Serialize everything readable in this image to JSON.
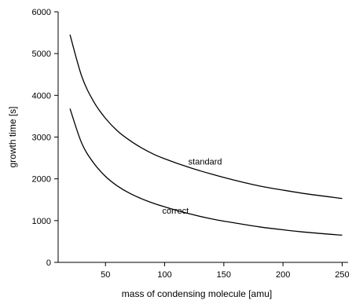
{
  "chart_data": {
    "type": "line",
    "xlabel": "mass of condensing molecule [amu]",
    "ylabel": "growth time [s]",
    "xlim": [
      10,
      255
    ],
    "ylim": [
      0,
      6000
    ],
    "xticks": [
      50,
      100,
      150,
      200,
      250
    ],
    "yticks": [
      0,
      1000,
      2000,
      3000,
      4000,
      5000,
      6000
    ],
    "grid": false,
    "series": [
      {
        "name": "standard",
        "x": [
          20,
          30,
          40,
          50,
          60,
          70,
          80,
          90,
          100,
          120,
          140,
          160,
          180,
          200,
          220,
          250
        ],
        "values": [
          5450,
          4450,
          3850,
          3450,
          3150,
          2930,
          2750,
          2600,
          2480,
          2280,
          2110,
          1960,
          1830,
          1730,
          1640,
          1530
        ]
      },
      {
        "name": "correct",
        "x": [
          20,
          30,
          40,
          50,
          60,
          70,
          80,
          90,
          100,
          120,
          140,
          160,
          180,
          200,
          220,
          250
        ],
        "values": [
          3680,
          2850,
          2380,
          2060,
          1830,
          1660,
          1530,
          1420,
          1330,
          1170,
          1040,
          940,
          850,
          780,
          720,
          650
        ]
      }
    ],
    "annotations": [
      {
        "text": "standard",
        "x": 120,
        "y": 2340
      },
      {
        "text": "correct",
        "x": 98,
        "y": 1170
      }
    ]
  }
}
